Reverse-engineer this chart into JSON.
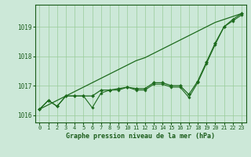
{
  "xlabel": "Graphe pression niveau de la mer (hPa)",
  "hours": [
    0,
    1,
    2,
    3,
    4,
    5,
    6,
    7,
    8,
    9,
    10,
    11,
    12,
    13,
    14,
    15,
    16,
    17,
    18,
    19,
    20,
    21,
    22,
    23
  ],
  "line_straight": [
    1016.2,
    1016.35,
    1016.5,
    1016.65,
    1016.8,
    1016.95,
    1017.1,
    1017.25,
    1017.4,
    1017.55,
    1017.7,
    1017.85,
    1017.95,
    1018.1,
    1018.25,
    1018.4,
    1018.55,
    1018.7,
    1018.85,
    1019.0,
    1019.15,
    1019.25,
    1019.35,
    1019.45
  ],
  "line_main": [
    1016.2,
    1016.5,
    1016.3,
    1016.65,
    1016.65,
    1016.65,
    1016.65,
    1016.85,
    1016.85,
    1016.9,
    1016.95,
    1016.9,
    1016.9,
    1017.1,
    1017.1,
    1017.0,
    1017.0,
    1016.7,
    1017.15,
    1017.8,
    1018.45,
    1019.0,
    1019.25,
    1019.45
  ],
  "line_low": [
    1016.2,
    1016.5,
    1016.3,
    1016.65,
    1016.65,
    1016.65,
    1016.25,
    1016.75,
    1016.85,
    1016.85,
    1016.95,
    1016.85,
    1016.85,
    1017.05,
    1017.05,
    1016.95,
    1016.95,
    1016.6,
    1017.1,
    1017.75,
    1018.4,
    1019.0,
    1019.2,
    1019.4
  ],
  "ylim": [
    1015.75,
    1019.75
  ],
  "yticks": [
    1016,
    1017,
    1018,
    1019
  ],
  "xlim": [
    -0.5,
    23.5
  ],
  "bg_color": "#cce8d8",
  "grid_color": "#99cc99",
  "line_color": "#1e6b1e",
  "text_color": "#1a5c1a",
  "xlabel_fontsize": 6.0,
  "tick_fontsize": 5.0
}
